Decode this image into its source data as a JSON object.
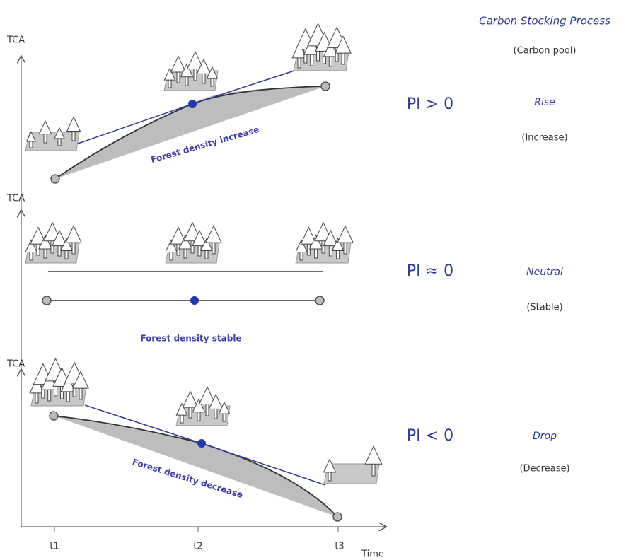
{
  "header": {
    "title": "Carbon Stocking Process",
    "subtitle": "(Carbon pool)"
  },
  "panels": [
    {
      "axis_label": "TCA",
      "annotation": "Forest density increase",
      "index": "PI > 0",
      "process": "Rise",
      "meaning": "(Increase)"
    },
    {
      "axis_label": "TCA",
      "annotation": "Forest density stable",
      "index": "PI ≈ 0",
      "process": "Neutral",
      "meaning": "(Stable)"
    },
    {
      "axis_label": "TCA",
      "annotation": "Forest density decrease",
      "index": "PI < 0",
      "process": "Drop",
      "meaning": "(Decrease)"
    }
  ],
  "x_axis": {
    "ticks": [
      "t1",
      "t2",
      "t3"
    ],
    "label": "Time"
  }
}
